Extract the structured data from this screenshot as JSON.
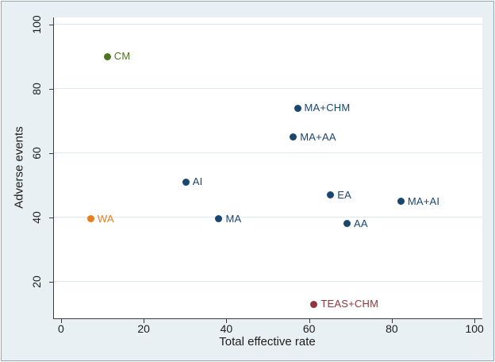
{
  "figure": {
    "background": "#e9f0f3",
    "border_color": "#93a9b5",
    "plot_background": "#ffffff",
    "grid_color": "#dfe9f2",
    "axis_color": "#3c3c3c",
    "text_color": "#1c1c1c"
  },
  "chart_data": {
    "type": "scatter",
    "title": "",
    "xlabel": "Total effective rate",
    "ylabel": "Adverse events",
    "x_ticks": [
      0,
      20,
      40,
      60,
      80,
      100
    ],
    "y_ticks": [
      20,
      40,
      60,
      80,
      100
    ],
    "xlim": [
      -1.9,
      101.7
    ],
    "ylim": [
      8.6,
      102.2
    ],
    "grid": "horizontal gridlines at y ticks",
    "legend_position": "none (points labeled directly)",
    "points": [
      {
        "label": "CM",
        "x": 11,
        "y": 90,
        "color": "#4f7420"
      },
      {
        "label": "MA+CHM",
        "x": 57,
        "y": 74,
        "color": "#1a476f"
      },
      {
        "label": "MA+AA",
        "x": 56,
        "y": 65,
        "color": "#1a476f"
      },
      {
        "label": "AI",
        "x": 30,
        "y": 51,
        "color": "#1a476f"
      },
      {
        "label": "EA",
        "x": 65,
        "y": 47,
        "color": "#1a476f"
      },
      {
        "label": "MA+AI",
        "x": 82,
        "y": 45,
        "color": "#1a476f"
      },
      {
        "label": "WA",
        "x": 7,
        "y": 39.5,
        "color": "#e87d1e"
      },
      {
        "label": "MA",
        "x": 38,
        "y": 39.5,
        "color": "#1a476f"
      },
      {
        "label": "AA",
        "x": 69,
        "y": 38,
        "color": "#1a476f"
      },
      {
        "label": "TEAS+CHM",
        "x": 61,
        "y": 13,
        "color": "#90353b"
      }
    ]
  }
}
